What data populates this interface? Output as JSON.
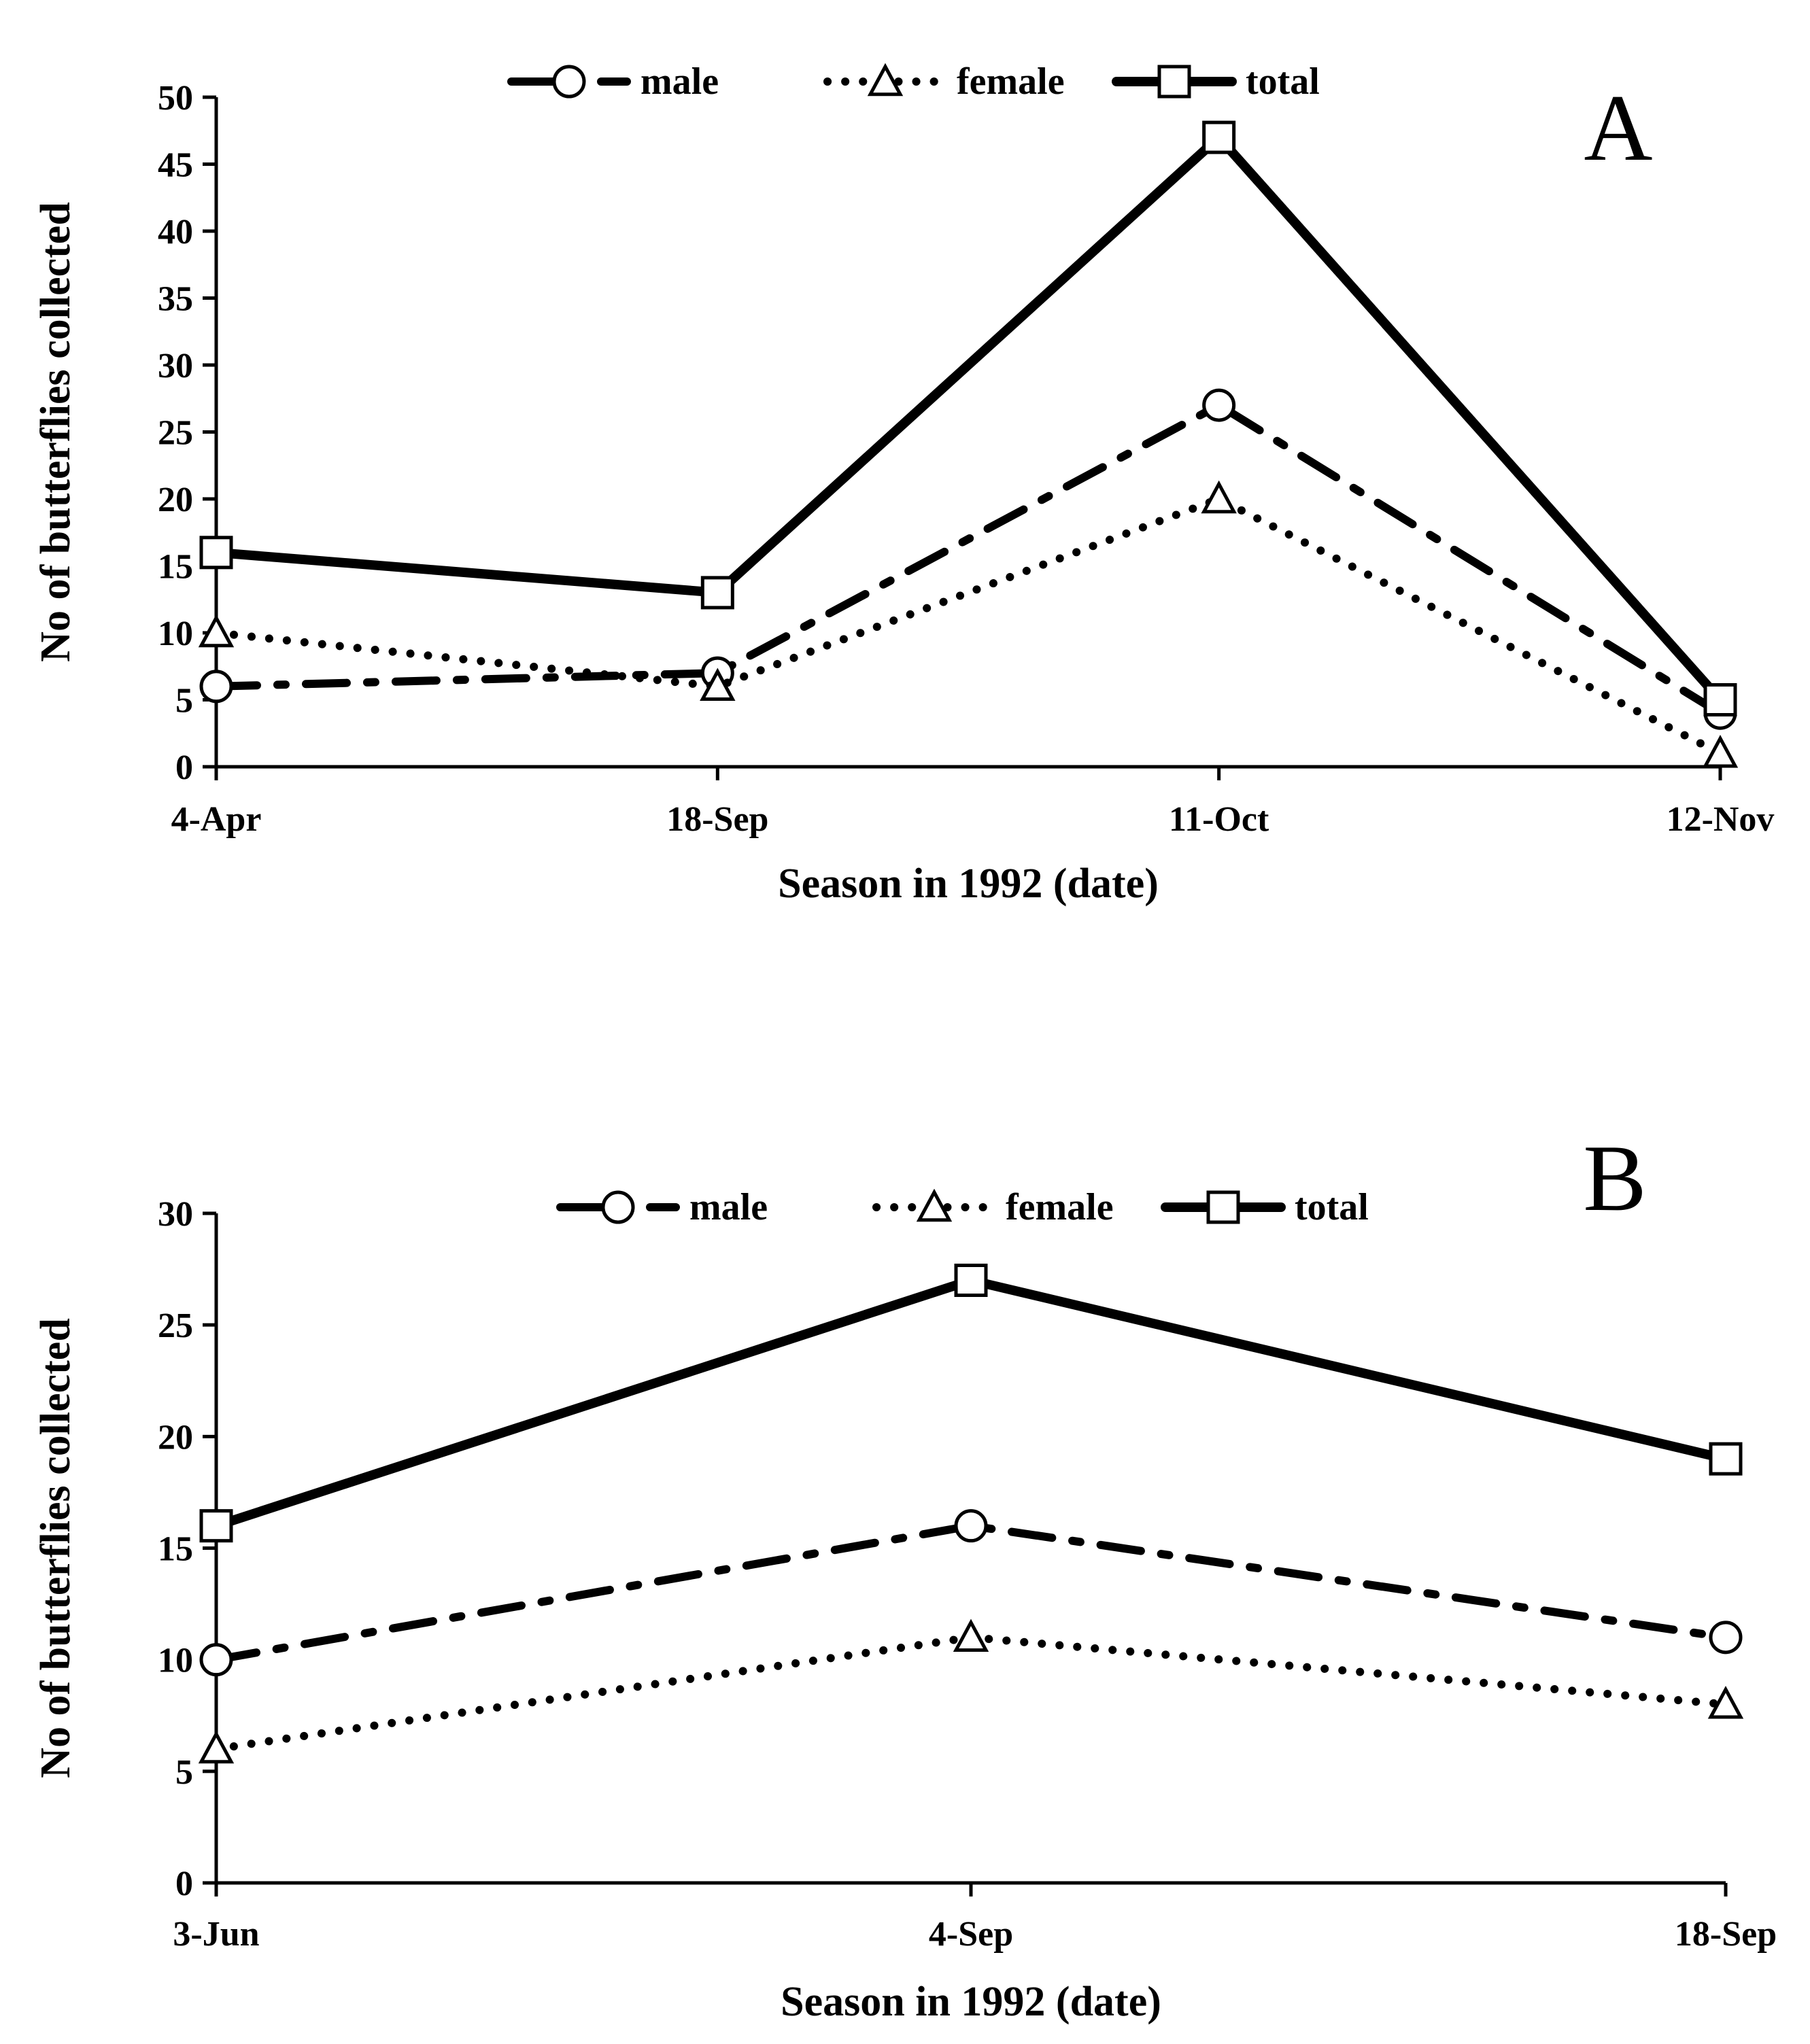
{
  "chart_data": [
    {
      "type": "line",
      "panel_label": "A",
      "categories": [
        "4-Apr",
        "18-Sep",
        "11-Oct",
        "12-Nov"
      ],
      "series": [
        {
          "name": "male",
          "values": [
            6,
            7,
            27,
            4
          ],
          "marker": "circle",
          "style": "dash-dot"
        },
        {
          "name": "female",
          "values": [
            10,
            6,
            20,
            1
          ],
          "marker": "triangle",
          "style": "dotted"
        },
        {
          "name": "total",
          "values": [
            16,
            13,
            47,
            5
          ],
          "marker": "square",
          "style": "solid"
        }
      ],
      "xlabel": "Season in 1992 (date)",
      "ylabel": "No of butterflies collected",
      "ylim": [
        0,
        50
      ],
      "yticks": [
        0,
        5,
        10,
        15,
        20,
        25,
        30,
        35,
        40,
        45,
        50
      ],
      "grid": false,
      "legend": "top-center"
    },
    {
      "type": "line",
      "panel_label": "B",
      "categories": [
        "3-Jun",
        "4-Sep",
        "18-Sep"
      ],
      "series": [
        {
          "name": "male",
          "values": [
            10,
            16,
            11
          ],
          "marker": "circle",
          "style": "dash-dot"
        },
        {
          "name": "female",
          "values": [
            6,
            11,
            8
          ],
          "marker": "triangle",
          "style": "dotted"
        },
        {
          "name": "total",
          "values": [
            16,
            27,
            19
          ],
          "marker": "square",
          "style": "solid"
        }
      ],
      "xlabel": "Season in 1992 (date)",
      "ylabel": "No of butterflies collected",
      "ylim": [
        0,
        30
      ],
      "yticks": [
        0,
        5,
        10,
        15,
        20,
        25,
        30
      ],
      "grid": false,
      "legend": "top-center"
    }
  ]
}
